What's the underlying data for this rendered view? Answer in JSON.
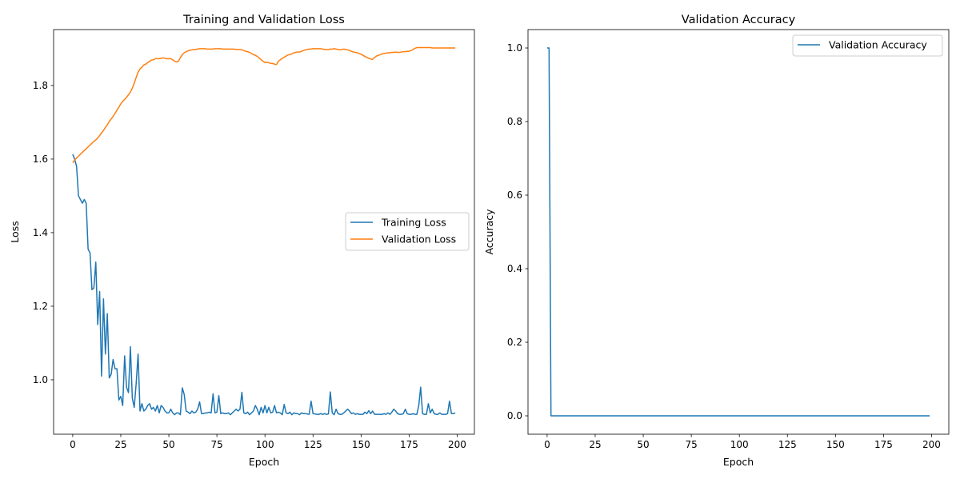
{
  "chart_data": [
    {
      "type": "line",
      "title": "Training and Validation Loss",
      "xlabel": "Epoch",
      "ylabel": "Loss",
      "xlim": [
        -9.95,
        208.95
      ],
      "ylim": [
        0.852,
        1.952
      ],
      "xticks": [
        0,
        25,
        50,
        75,
        100,
        125,
        150,
        175,
        200
      ],
      "yticks": [
        1.0,
        1.2,
        1.4,
        1.6,
        1.8
      ],
      "ytick_labels": [
        "1.0",
        "1.2",
        "1.4",
        "1.6",
        "1.8"
      ],
      "grid": false,
      "legend_placement": "center-right",
      "series": [
        {
          "name": "Training Loss",
          "color": "#1f77b4",
          "values": [
            1.613,
            1.6,
            1.58,
            1.5,
            1.49,
            1.48,
            1.49,
            1.48,
            1.355,
            1.345,
            1.245,
            1.25,
            1.32,
            1.15,
            1.24,
            1.01,
            1.22,
            1.07,
            1.18,
            1.005,
            1.015,
            1.055,
            1.03,
            1.03,
            0.945,
            0.955,
            0.93,
            1.065,
            0.98,
            0.965,
            1.09,
            0.95,
            0.925,
            0.99,
            1.07,
            0.915,
            0.935,
            0.915,
            0.92,
            0.93,
            0.935,
            0.92,
            0.925,
            0.915,
            0.93,
            0.91,
            0.93,
            0.925,
            0.915,
            0.91,
            0.91,
            0.92,
            0.91,
            0.905,
            0.91,
            0.91,
            0.905,
            0.978,
            0.96,
            0.915,
            0.912,
            0.908,
            0.915,
            0.91,
            0.912,
            0.92,
            0.94,
            0.908,
            0.908,
            0.91,
            0.91,
            0.912,
            0.91,
            0.962,
            0.91,
            0.912,
            0.957,
            0.908,
            0.91,
            0.908,
            0.908,
            0.91,
            0.905,
            0.91,
            0.915,
            0.92,
            0.915,
            0.92,
            0.966,
            0.91,
            0.908,
            0.912,
            0.905,
            0.91,
            0.915,
            0.93,
            0.92,
            0.905,
            0.925,
            0.91,
            0.93,
            0.91,
            0.925,
            0.91,
            0.912,
            0.93,
            0.91,
            0.912,
            0.91,
            0.905,
            0.933,
            0.91,
            0.908,
            0.912,
            0.905,
            0.91,
            0.908,
            0.908,
            0.905,
            0.91,
            0.908,
            0.908,
            0.907,
            0.906,
            0.942,
            0.908,
            0.907,
            0.906,
            0.906,
            0.908,
            0.906,
            0.908,
            0.906,
            0.907,
            0.967,
            0.91,
            0.905,
            0.92,
            0.908,
            0.906,
            0.906,
            0.91,
            0.915,
            0.92,
            0.915,
            0.908,
            0.91,
            0.906,
            0.908,
            0.906,
            0.906,
            0.906,
            0.912,
            0.908,
            0.916,
            0.908,
            0.915,
            0.906,
            0.906,
            0.906,
            0.906,
            0.906,
            0.908,
            0.906,
            0.91,
            0.906,
            0.912,
            0.92,
            0.915,
            0.908,
            0.906,
            0.906,
            0.908,
            0.92,
            0.908,
            0.906,
            0.906,
            0.908,
            0.906,
            0.906,
            0.93,
            0.98,
            0.908,
            0.906,
            0.906,
            0.935,
            0.91,
            0.92,
            0.908,
            0.906,
            0.906,
            0.91,
            0.906,
            0.906,
            0.906,
            0.908,
            0.942,
            0.908,
            0.908,
            0.91
          ]
        },
        {
          "name": "Validation Loss",
          "color": "#ff7f0e",
          "values": [
            1.59,
            1.597,
            1.603,
            1.608,
            1.613,
            1.618,
            1.623,
            1.628,
            1.633,
            1.638,
            1.643,
            1.648,
            1.652,
            1.657,
            1.664,
            1.671,
            1.678,
            1.686,
            1.693,
            1.702,
            1.709,
            1.716,
            1.724,
            1.733,
            1.741,
            1.75,
            1.757,
            1.762,
            1.768,
            1.775,
            1.782,
            1.793,
            1.806,
            1.822,
            1.836,
            1.845,
            1.85,
            1.856,
            1.858,
            1.862,
            1.866,
            1.869,
            1.87,
            1.873,
            1.873,
            1.873,
            1.874,
            1.875,
            1.874,
            1.873,
            1.873,
            1.873,
            1.87,
            1.866,
            1.864,
            1.866,
            1.876,
            1.884,
            1.889,
            1.892,
            1.894,
            1.896,
            1.897,
            1.898,
            1.898,
            1.899,
            1.9,
            1.9,
            1.9,
            1.9,
            1.899,
            1.899,
            1.899,
            1.899,
            1.9,
            1.9,
            1.9,
            1.9,
            1.899,
            1.899,
            1.899,
            1.899,
            1.899,
            1.899,
            1.899,
            1.898,
            1.898,
            1.898,
            1.897,
            1.895,
            1.893,
            1.892,
            1.89,
            1.887,
            1.884,
            1.882,
            1.879,
            1.875,
            1.87,
            1.866,
            1.862,
            1.863,
            1.862,
            1.86,
            1.86,
            1.858,
            1.857,
            1.866,
            1.87,
            1.874,
            1.877,
            1.88,
            1.883,
            1.884,
            1.886,
            1.889,
            1.89,
            1.891,
            1.891,
            1.893,
            1.895,
            1.897,
            1.898,
            1.899,
            1.899,
            1.9,
            1.9,
            1.9,
            1.9,
            1.9,
            1.899,
            1.898,
            1.898,
            1.898,
            1.899,
            1.899,
            1.9,
            1.899,
            1.898,
            1.897,
            1.898,
            1.899,
            1.898,
            1.897,
            1.895,
            1.893,
            1.891,
            1.89,
            1.889,
            1.887,
            1.885,
            1.882,
            1.879,
            1.876,
            1.874,
            1.872,
            1.871,
            1.876,
            1.88,
            1.882,
            1.884,
            1.886,
            1.887,
            1.888,
            1.889,
            1.889,
            1.89,
            1.89,
            1.891,
            1.89,
            1.89,
            1.891,
            1.892,
            1.892,
            1.893,
            1.893,
            1.895,
            1.898,
            1.901,
            1.903,
            1.903,
            1.903,
            1.903,
            1.903,
            1.903,
            1.903,
            1.903,
            1.902,
            1.902,
            1.902,
            1.902,
            1.902,
            1.902,
            1.902,
            1.902,
            1.902,
            1.902,
            1.902,
            1.902,
            1.902
          ]
        }
      ]
    },
    {
      "type": "line",
      "title": "Validation Accuracy",
      "xlabel": "Epoch",
      "ylabel": "Accuracy",
      "xlim": [
        -9.95,
        208.95
      ],
      "ylim": [
        -0.05,
        1.05
      ],
      "xticks": [
        0,
        25,
        50,
        75,
        100,
        125,
        150,
        175,
        200
      ],
      "yticks": [
        0.0,
        0.2,
        0.4,
        0.6,
        0.8,
        1.0
      ],
      "ytick_labels": [
        "0.0",
        "0.2",
        "0.4",
        "0.6",
        "0.8",
        "1.0"
      ],
      "grid": false,
      "legend_placement": "upper-right",
      "series": [
        {
          "name": "Validation Accuracy",
          "color": "#1f77b4",
          "values": [
            1,
            1,
            0,
            0,
            0,
            0,
            0,
            0,
            0,
            0,
            0,
            0,
            0,
            0,
            0,
            0,
            0,
            0,
            0,
            0,
            0,
            0,
            0,
            0,
            0,
            0,
            0,
            0,
            0,
            0,
            0,
            0,
            0,
            0,
            0,
            0,
            0,
            0,
            0,
            0,
            0,
            0,
            0,
            0,
            0,
            0,
            0,
            0,
            0,
            0,
            0,
            0,
            0,
            0,
            0,
            0,
            0,
            0,
            0,
            0,
            0,
            0,
            0,
            0,
            0,
            0,
            0,
            0,
            0,
            0,
            0,
            0,
            0,
            0,
            0,
            0,
            0,
            0,
            0,
            0,
            0,
            0,
            0,
            0,
            0,
            0,
            0,
            0,
            0,
            0,
            0,
            0,
            0,
            0,
            0,
            0,
            0,
            0,
            0,
            0,
            0,
            0,
            0,
            0,
            0,
            0,
            0,
            0,
            0,
            0,
            0,
            0,
            0,
            0,
            0,
            0,
            0,
            0,
            0,
            0,
            0,
            0,
            0,
            0,
            0,
            0,
            0,
            0,
            0,
            0,
            0,
            0,
            0,
            0,
            0,
            0,
            0,
            0,
            0,
            0,
            0,
            0,
            0,
            0,
            0,
            0,
            0,
            0,
            0,
            0,
            0,
            0,
            0,
            0,
            0,
            0,
            0,
            0,
            0,
            0,
            0,
            0,
            0,
            0,
            0,
            0,
            0,
            0,
            0,
            0,
            0,
            0,
            0,
            0,
            0,
            0,
            0,
            0,
            0,
            0,
            0,
            0,
            0,
            0,
            0,
            0,
            0,
            0,
            0,
            0,
            0,
            0,
            0,
            0,
            0,
            0,
            0,
            0,
            0,
            0
          ]
        }
      ]
    }
  ]
}
